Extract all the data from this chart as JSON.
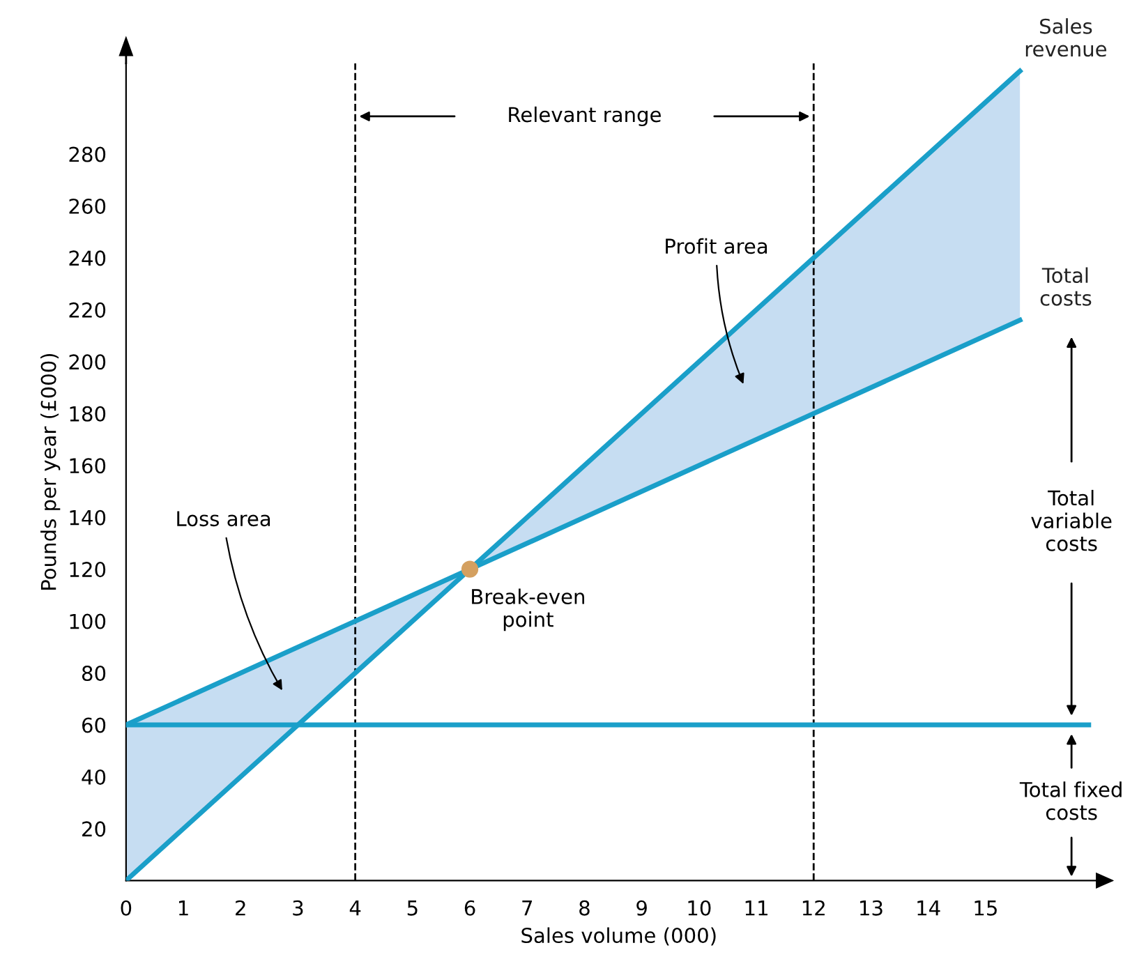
{
  "chart_data": {
    "type": "line",
    "xlabel": "Sales volume (000)",
    "ylabel": "Pounds per year (£000)",
    "xlim": [
      0,
      17.2
    ],
    "ylim": [
      0,
      315
    ],
    "xticks": [
      0,
      1,
      2,
      3,
      4,
      5,
      6,
      7,
      8,
      9,
      10,
      11,
      12,
      13,
      14,
      15
    ],
    "yticks": [
      20,
      40,
      60,
      80,
      100,
      120,
      140,
      160,
      180,
      200,
      220,
      240,
      260,
      280
    ],
    "grid": false,
    "legend": false,
    "marker": "none",
    "line_style": "solid",
    "series": [
      {
        "name": "Sales revenue",
        "color": "#1a9fc9",
        "x": [
          0,
          15.6
        ],
        "values": [
          0,
          312
        ],
        "lower": [
          60,
          216
        ],
        "upper": [
          0,
          312
        ]
      },
      {
        "name": "Total costs",
        "color": "#1a9fc9",
        "x": [
          0,
          15.6
        ],
        "values": [
          60,
          216
        ]
      },
      {
        "color": "#1a9fc9",
        "x": [
          0,
          16.8
        ],
        "values": [
          60,
          60
        ]
      },
      {
        "type": "scatter",
        "color": "#d4a060",
        "marker": "circle",
        "x": [
          6
        ],
        "values": [
          120
        ]
      }
    ],
    "ref_lines": [
      {
        "axis": "x",
        "value": 4,
        "color": "#000000",
        "line_style": "dashed"
      },
      {
        "axis": "x",
        "value": 12,
        "color": "#000000",
        "line_style": "dashed"
      }
    ],
    "annotations": [
      "Relevant range",
      "Loss area",
      "Profit area",
      {
        "text": "Break-even point",
        "x": 6,
        "y": 120
      },
      "Total variable costs",
      "Total fixed costs"
    ]
  }
}
